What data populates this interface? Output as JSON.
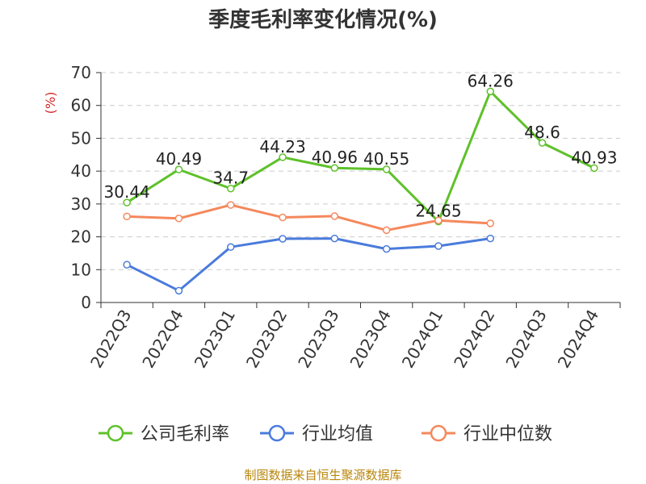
{
  "chart_data": {
    "type": "line",
    "title": "季度毛利率变化情况(%)",
    "ylabel": "(%)",
    "ylim": [
      0,
      70
    ],
    "yticks": [
      0,
      10,
      20,
      30,
      40,
      50,
      60,
      70
    ],
    "grid": true,
    "legend_position": "bottom",
    "categories": [
      "2022Q3",
      "2022Q4",
      "2023Q1",
      "2023Q2",
      "2023Q3",
      "2023Q4",
      "2024Q1",
      "2024Q2",
      "2024Q3",
      "2024Q4"
    ],
    "series": [
      {
        "name": "公司毛利率",
        "color": "#5ec12a",
        "labeled": true,
        "values": [
          30.44,
          40.49,
          34.7,
          44.23,
          40.96,
          40.55,
          24.65,
          64.26,
          48.6,
          40.93
        ]
      },
      {
        "name": "行业均值",
        "color": "#4a7bdc",
        "labeled": false,
        "values": [
          11.5,
          3.6,
          16.9,
          19.4,
          19.5,
          16.3,
          17.2,
          19.5,
          null,
          null
        ]
      },
      {
        "name": "行业中位数",
        "color": "#f5885c",
        "labeled": false,
        "values": [
          26.2,
          25.6,
          29.7,
          25.9,
          26.3,
          22.0,
          25.0,
          24.1,
          null,
          null
        ]
      }
    ]
  },
  "source": "制图数据来自恒生聚源数据库"
}
